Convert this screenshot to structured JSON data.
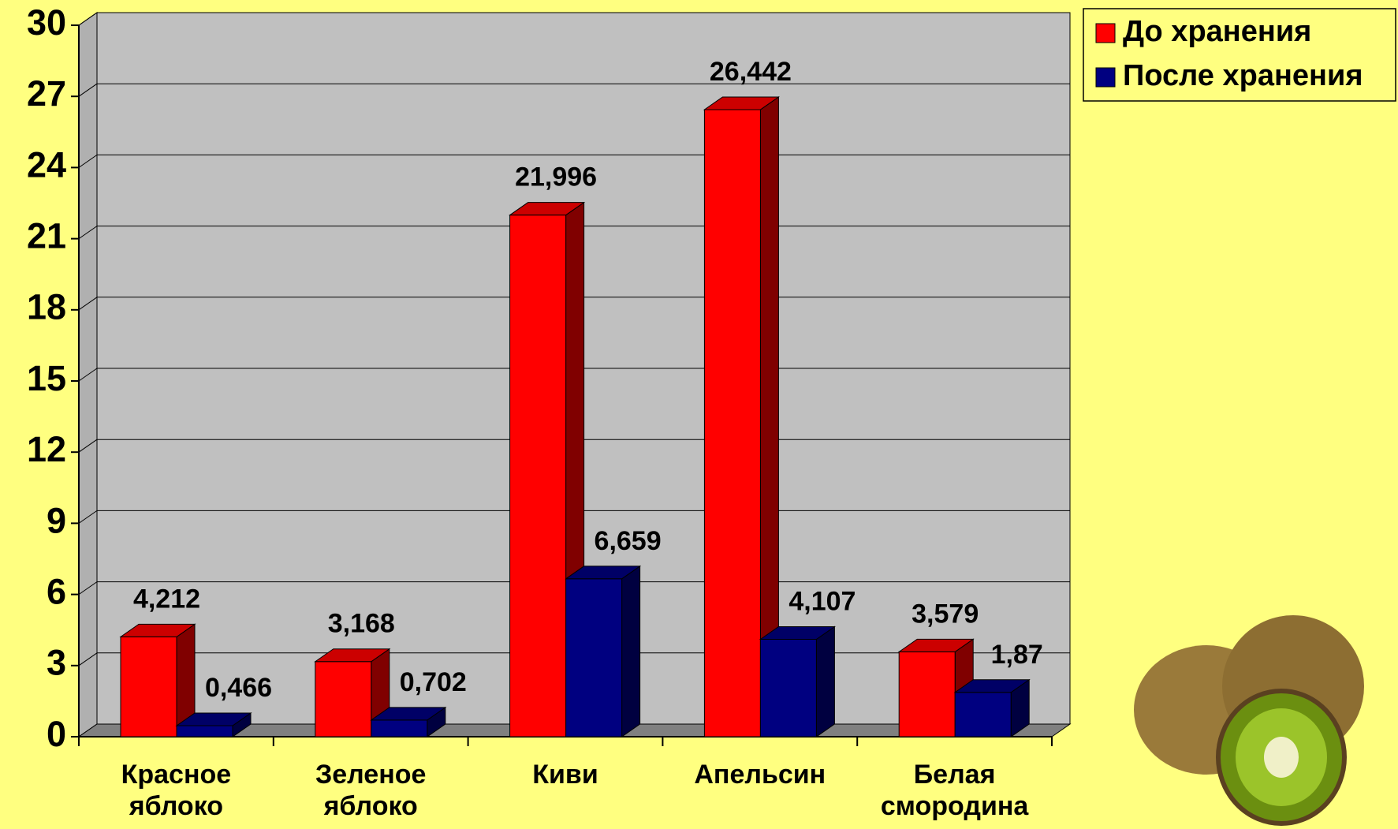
{
  "chart_data": {
    "type": "bar3d",
    "categories": [
      "Красное яблоко",
      "Зеленое яблоко",
      "Киви",
      "Апельсин",
      "Белая смородина"
    ],
    "series": [
      {
        "name": "До хранения",
        "color": "#ff0000",
        "values": [
          4.212,
          3.168,
          21.996,
          26.442,
          3.579
        ],
        "value_labels": [
          "4,212",
          "3,168",
          "21,996",
          "26,442",
          "3,579"
        ]
      },
      {
        "name": "После хранения",
        "color": "#000080",
        "values": [
          0.466,
          0.702,
          6.659,
          4.107,
          1.87
        ],
        "value_labels": [
          "0,466",
          "0,702",
          "6,659",
          "4,107",
          "1,87"
        ]
      }
    ],
    "ylim": [
      0,
      30
    ],
    "yticks": [
      0,
      3,
      6,
      9,
      12,
      15,
      18,
      21,
      24,
      27,
      30
    ],
    "grid": true,
    "legend": "top-right"
  }
}
